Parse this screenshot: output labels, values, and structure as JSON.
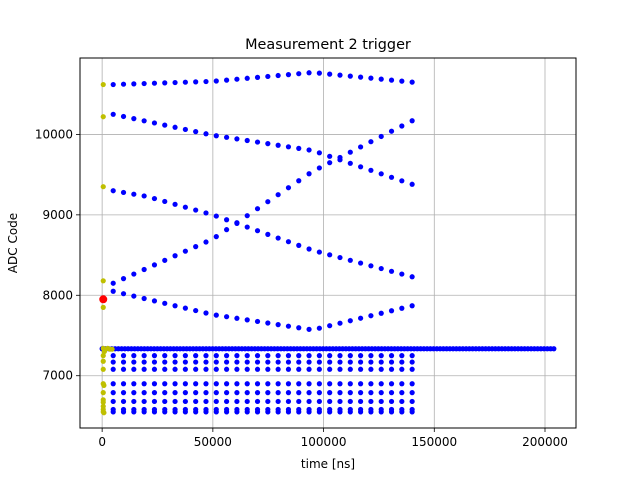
{
  "chart_data": {
    "type": "scatter",
    "title": "Measurement 2 trigger",
    "xlabel": "time [ns]",
    "ylabel": "ADC Code",
    "xlim": [
      -10000,
      214000
    ],
    "ylim": [
      6350,
      10950
    ],
    "x_ticks": [
      0,
      50000,
      100000,
      150000,
      200000
    ],
    "x_tick_labels": [
      "0",
      "50000",
      "100000",
      "150000",
      "200000"
    ],
    "y_ticks": [
      7000,
      8000,
      9000,
      10000
    ],
    "y_tick_labels": [
      "7000",
      "8000",
      "9000",
      "10000"
    ],
    "grid": true,
    "series": [
      {
        "color": "#0000ff",
        "marker": "dot",
        "groups": [
          {
            "x_start": 0,
            "x_end": 204000,
            "n": 140,
            "y": [
              [
                0,
                7335
              ],
              [
                204000,
                7335
              ]
            ]
          },
          {
            "x_start": 5000,
            "x_end": 140000,
            "n": 30,
            "y": [
              [
                5000,
                10620
              ],
              [
                50000,
                10660
              ],
              [
                95000,
                10770
              ],
              [
                140000,
                10650
              ]
            ]
          },
          {
            "x_start": 5000,
            "x_end": 140000,
            "n": 30,
            "y": [
              [
                5000,
                10250
              ],
              [
                50000,
                9990
              ],
              [
                95000,
                9800
              ],
              [
                140000,
                9380
              ]
            ]
          },
          {
            "x_start": 5000,
            "x_end": 140000,
            "n": 30,
            "y": [
              [
                5000,
                9300
              ],
              [
                20000,
                9230
              ],
              [
                50000,
                9000
              ],
              [
                95000,
                8560
              ],
              [
                140000,
                8230
              ]
            ]
          },
          {
            "x_start": 5000,
            "x_end": 140000,
            "n": 30,
            "y": [
              [
                5000,
                8150
              ],
              [
                50000,
                8700
              ],
              [
                95000,
                9540
              ],
              [
                140000,
                10170
              ]
            ]
          },
          {
            "x_start": 5000,
            "x_end": 140000,
            "n": 30,
            "y": [
              [
                5000,
                8050
              ],
              [
                50000,
                7760
              ],
              [
                95000,
                7570
              ],
              [
                140000,
                7870
              ]
            ]
          },
          {
            "x_start": 5000,
            "x_end": 140000,
            "n": 30,
            "y": [
              [
                5000,
                7250
              ],
              [
                140000,
                7250
              ]
            ]
          },
          {
            "x_start": 5000,
            "x_end": 140000,
            "n": 30,
            "y": [
              [
                5000,
                7170
              ],
              [
                140000,
                7170
              ]
            ]
          },
          {
            "x_start": 5000,
            "x_end": 140000,
            "n": 30,
            "y": [
              [
                5000,
                7080
              ],
              [
                140000,
                7080
              ]
            ]
          },
          {
            "x_start": 5000,
            "x_end": 140000,
            "n": 30,
            "y": [
              [
                5000,
                6900
              ],
              [
                140000,
                6900
              ]
            ]
          },
          {
            "x_start": 5000,
            "x_end": 140000,
            "n": 30,
            "y": [
              [
                5000,
                6790
              ],
              [
                140000,
                6790
              ]
            ]
          },
          {
            "x_start": 5000,
            "x_end": 140000,
            "n": 30,
            "y": [
              [
                5000,
                6680
              ],
              [
                140000,
                6680
              ]
            ]
          },
          {
            "x_start": 5000,
            "x_end": 140000,
            "n": 30,
            "y": [
              [
                5000,
                6580
              ],
              [
                140000,
                6580
              ]
            ]
          },
          {
            "x_start": 5000,
            "x_end": 140000,
            "n": 30,
            "y": [
              [
                5000,
                6550
              ],
              [
                140000,
                6550
              ]
            ]
          }
        ]
      },
      {
        "color": "#bfbf00",
        "marker": "dot",
        "points": [
          [
            500,
            10620
          ],
          [
            500,
            10220
          ],
          [
            500,
            9350
          ],
          [
            500,
            8180
          ],
          [
            500,
            7850
          ],
          [
            500,
            7340
          ],
          [
            1500,
            7330
          ],
          [
            2500,
            7340
          ],
          [
            3500,
            7330
          ],
          [
            4500,
            7330
          ],
          [
            1000,
            7300
          ],
          [
            500,
            7250
          ],
          [
            500,
            7180
          ],
          [
            500,
            7080
          ],
          [
            500,
            6900
          ],
          [
            800,
            6880
          ],
          [
            500,
            6790
          ],
          [
            500,
            6700
          ],
          [
            500,
            6670
          ],
          [
            500,
            6620
          ],
          [
            500,
            6580
          ],
          [
            500,
            6550
          ],
          [
            800,
            6540
          ]
        ]
      },
      {
        "color": "#ff0000",
        "marker": "dot",
        "points": [
          [
            500,
            7950
          ]
        ]
      }
    ]
  }
}
